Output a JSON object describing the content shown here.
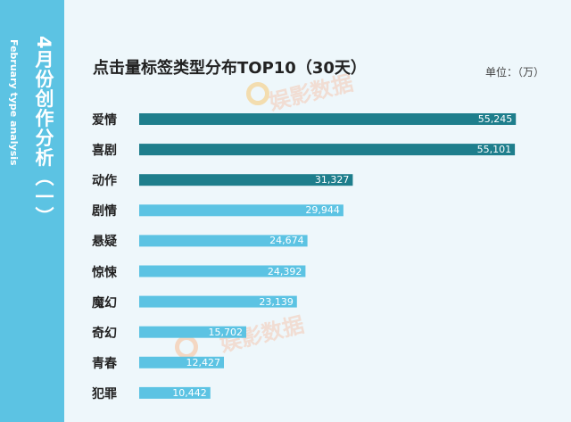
{
  "sidebar": {
    "title_zh": "4月份创作分析（一）",
    "title_en": "February type analysis"
  },
  "watermark": "娱影数据",
  "colors": {
    "sidebar": "#5cc3e3",
    "top_bar": "#1e7e8c",
    "other_bar": "#5cc3e3",
    "background": "#eef7fb"
  },
  "chart_data": {
    "type": "bar",
    "orientation": "horizontal",
    "title": "点击量标签类型分布TOP10（30天）",
    "unit": "单位：（万）",
    "categories": [
      "爱情",
      "喜剧",
      "动作",
      "剧情",
      "悬疑",
      "惊悚",
      "魔幻",
      "奇幻",
      "青春",
      "犯罪"
    ],
    "values": [
      55245,
      55101,
      31327,
      29944,
      24674,
      24392,
      23139,
      15702,
      12427,
      10442
    ],
    "value_labels": [
      "55,245",
      "55,101",
      "31,327",
      "29,944",
      "24,674",
      "24,392",
      "23,139",
      "15,702",
      "12,427",
      "10,442"
    ],
    "highlighted_count": 3,
    "xlim": [
      0,
      56000
    ],
    "grid": false,
    "legend": "none"
  }
}
